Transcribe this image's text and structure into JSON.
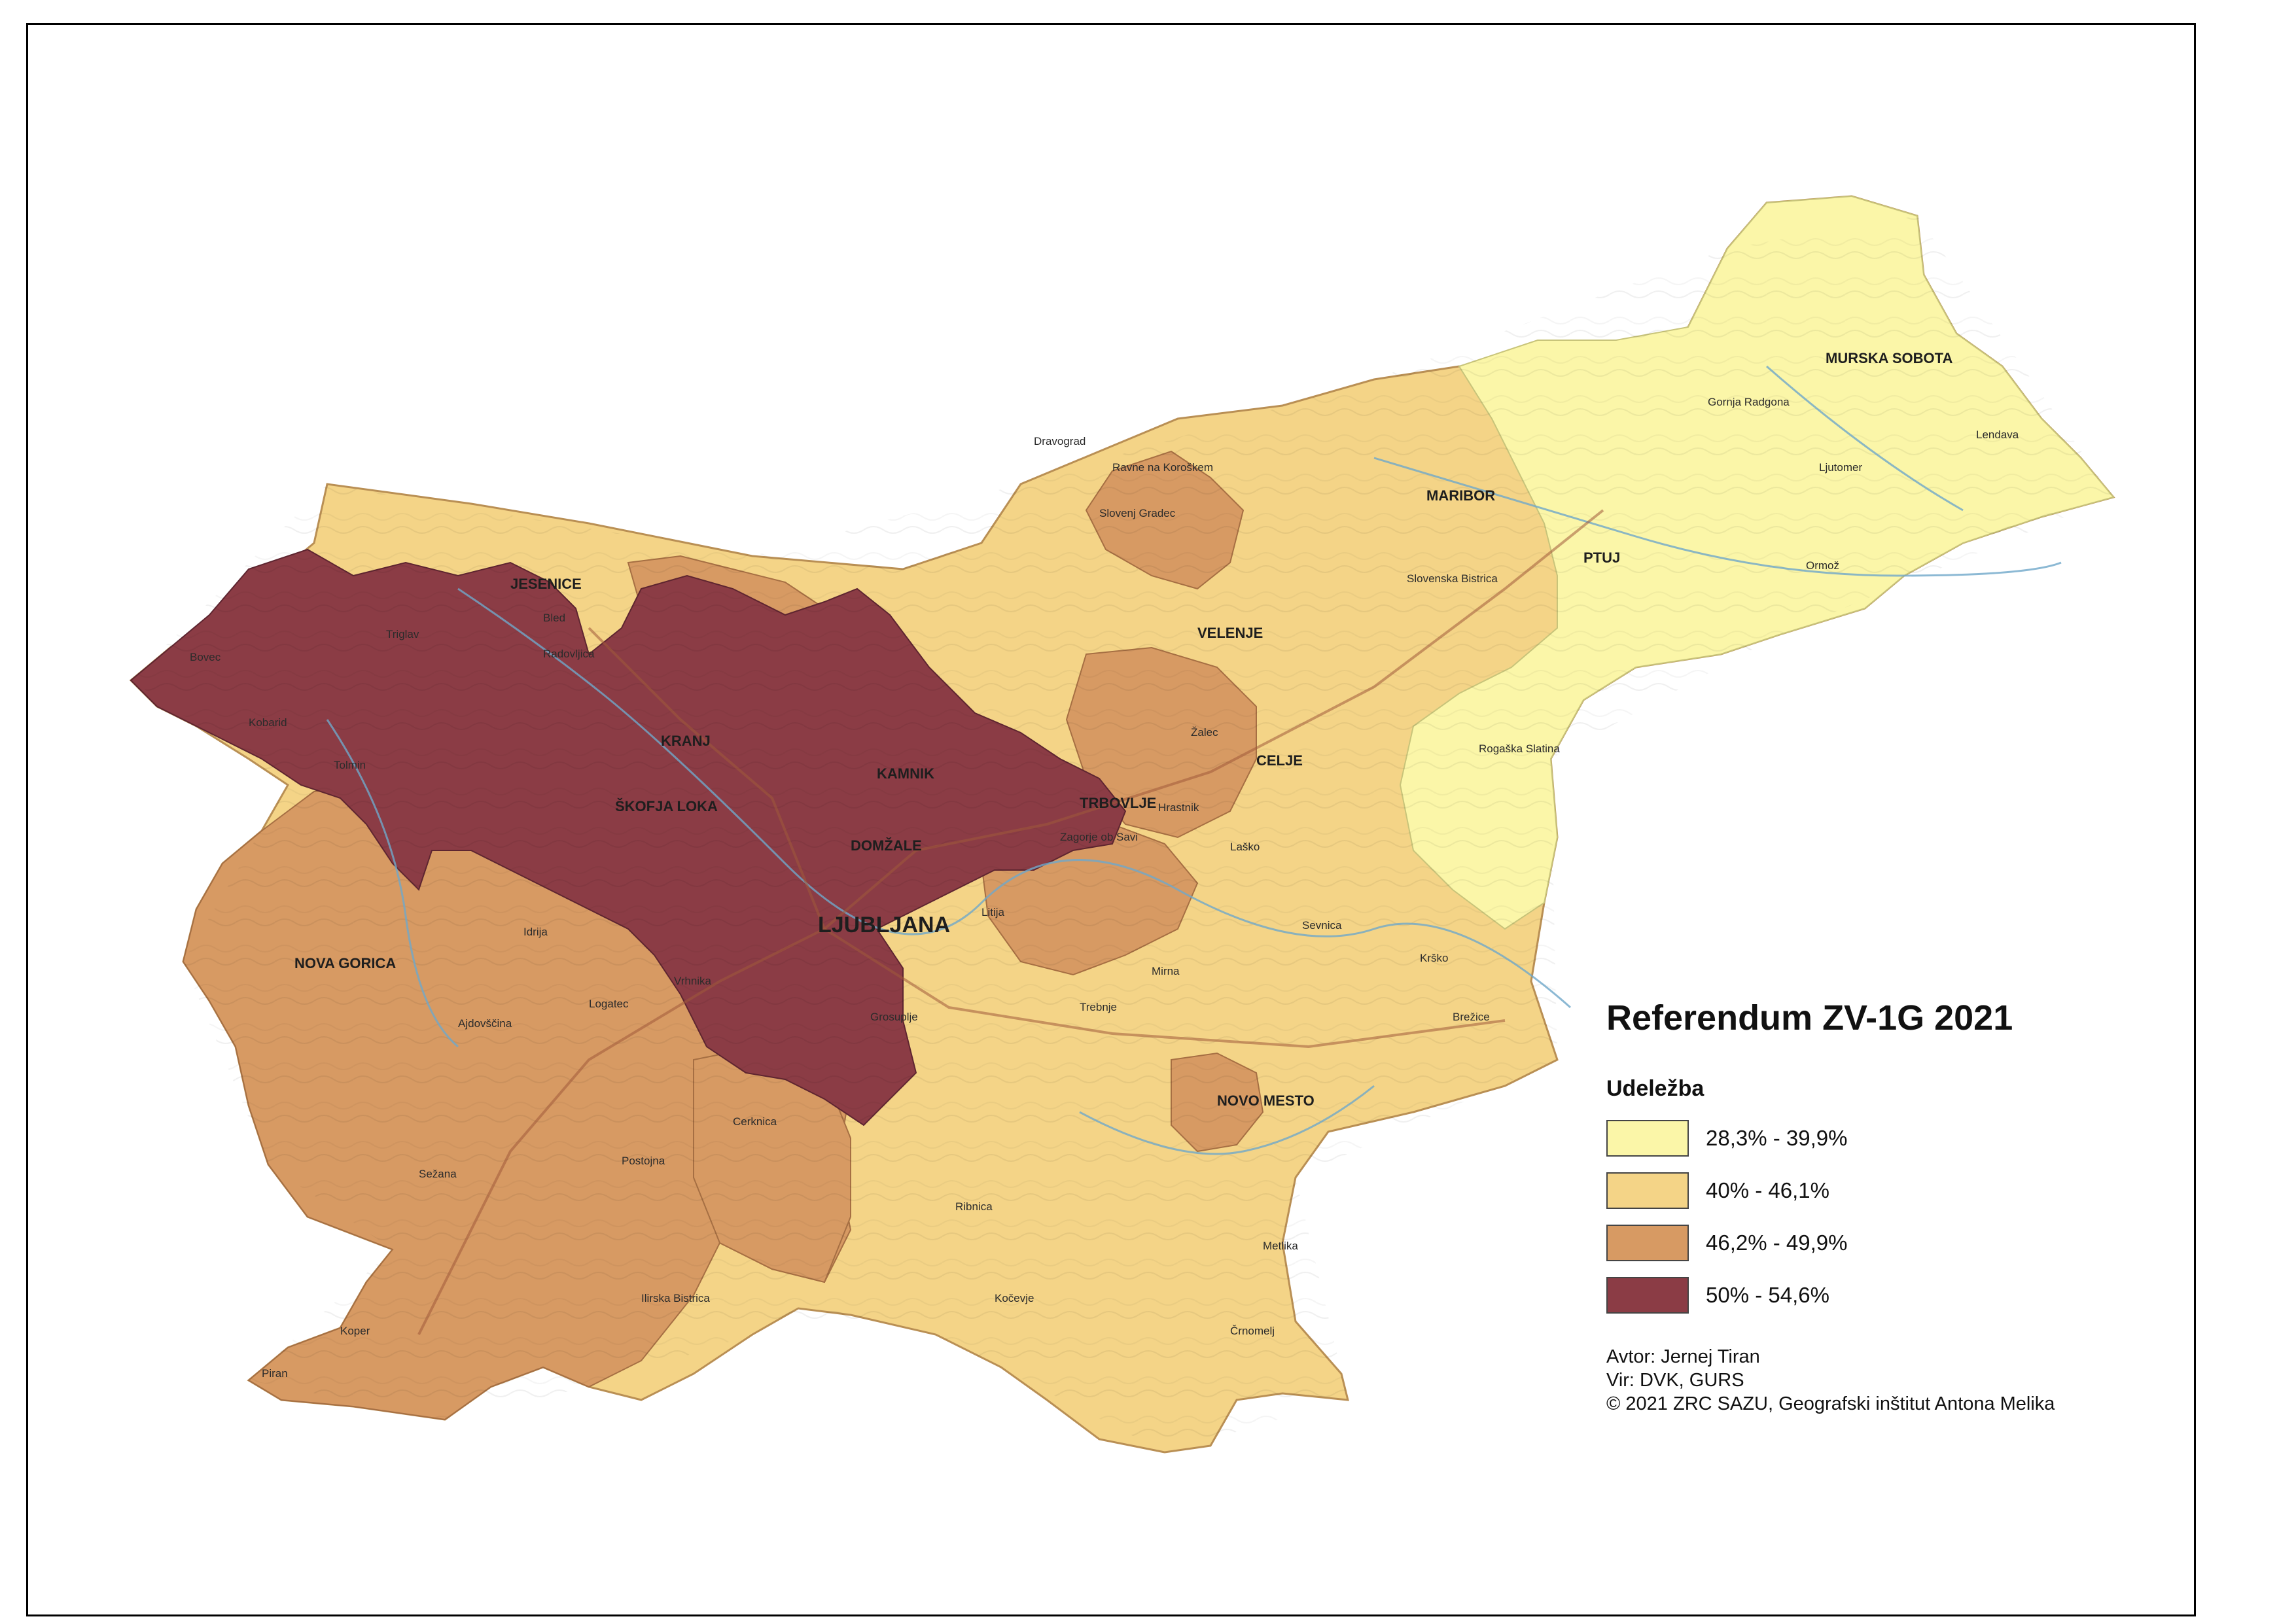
{
  "map": {
    "title": "Referendum ZV-1G 2021",
    "legend_title": "Udeležba",
    "classes": [
      {
        "label": "28,3% - 39,9%",
        "color": "#fbf6a8"
      },
      {
        "label": "40% - 46,1%",
        "color": "#f4d487"
      },
      {
        "label": "46,2% - 49,9%",
        "color": "#d79a63"
      },
      {
        "label": "50% - 54,6%",
        "color": "#8b3c45"
      }
    ],
    "credits": {
      "author": "Avtor: Jernej Tiran",
      "source": "Vir: DVK, GURS",
      "copyright": "© 2021 ZRC SAZU, Geografski inštitut Antona Melika"
    },
    "places": [
      {
        "name": "LJUBLJANA",
        "major": true
      },
      {
        "name": "MARIBOR",
        "major": true
      },
      {
        "name": "MURSKA SOBOTA",
        "major": true
      },
      {
        "name": "KRANJ",
        "major": true
      },
      {
        "name": "JESENICE",
        "major": true
      },
      {
        "name": "CELJE",
        "major": true
      },
      {
        "name": "VELENJE",
        "major": true
      },
      {
        "name": "PTUJ",
        "major": true
      },
      {
        "name": "NOVO MESTO",
        "major": true
      },
      {
        "name": "NOVA GORICA",
        "major": true
      },
      {
        "name": "KAMNIK",
        "major": true
      },
      {
        "name": "DOMŽALE",
        "major": true
      },
      {
        "name": "TRBOVLJE",
        "major": true
      },
      {
        "name": "ŠKOFJA LOKA",
        "major": true
      },
      {
        "name": "Bovec",
        "major": false
      },
      {
        "name": "Tolmin",
        "major": false
      },
      {
        "name": "Kobarid",
        "major": false
      },
      {
        "name": "Bled",
        "major": false
      },
      {
        "name": "Radovljica",
        "major": false
      },
      {
        "name": "Idrija",
        "major": false
      },
      {
        "name": "Ajdovščina",
        "major": false
      },
      {
        "name": "Postojna",
        "major": false
      },
      {
        "name": "Sežana",
        "major": false
      },
      {
        "name": "Koper",
        "major": false
      },
      {
        "name": "Piran",
        "major": false
      },
      {
        "name": "Ilirska Bistrica",
        "major": false
      },
      {
        "name": "Cerknica",
        "major": false
      },
      {
        "name": "Vrhnika",
        "major": false
      },
      {
        "name": "Logatec",
        "major": false
      },
      {
        "name": "Kočevje",
        "major": false
      },
      {
        "name": "Ribnica",
        "major": false
      },
      {
        "name": "Grosuplje",
        "major": false
      },
      {
        "name": "Litija",
        "major": false
      },
      {
        "name": "Krško",
        "major": false
      },
      {
        "name": "Brežice",
        "major": false
      },
      {
        "name": "Sevnica",
        "major": false
      },
      {
        "name": "Črnomelj",
        "major": false
      },
      {
        "name": "Metlika",
        "major": false
      },
      {
        "name": "Slovenj Gradec",
        "major": false
      },
      {
        "name": "Dravograd",
        "major": false
      },
      {
        "name": "Ravne na Koroškem",
        "major": false
      },
      {
        "name": "Ormož",
        "major": false
      },
      {
        "name": "Ljutomer",
        "major": false
      },
      {
        "name": "Lendava",
        "major": false
      },
      {
        "name": "Gornja Radgona",
        "major": false
      },
      {
        "name": "Slovenska Bistrica",
        "major": false
      },
      {
        "name": "Rogaška Slatina",
        "major": false
      },
      {
        "name": "Triglav",
        "major": false
      },
      {
        "name": "Hrastnik",
        "major": false
      },
      {
        "name": "Zagorje ob Savi",
        "major": false
      },
      {
        "name": "Laško",
        "major": false
      },
      {
        "name": "Žalec",
        "major": false
      },
      {
        "name": "Mirna",
        "major": false
      },
      {
        "name": "Trebnje",
        "major": false
      }
    ]
  }
}
